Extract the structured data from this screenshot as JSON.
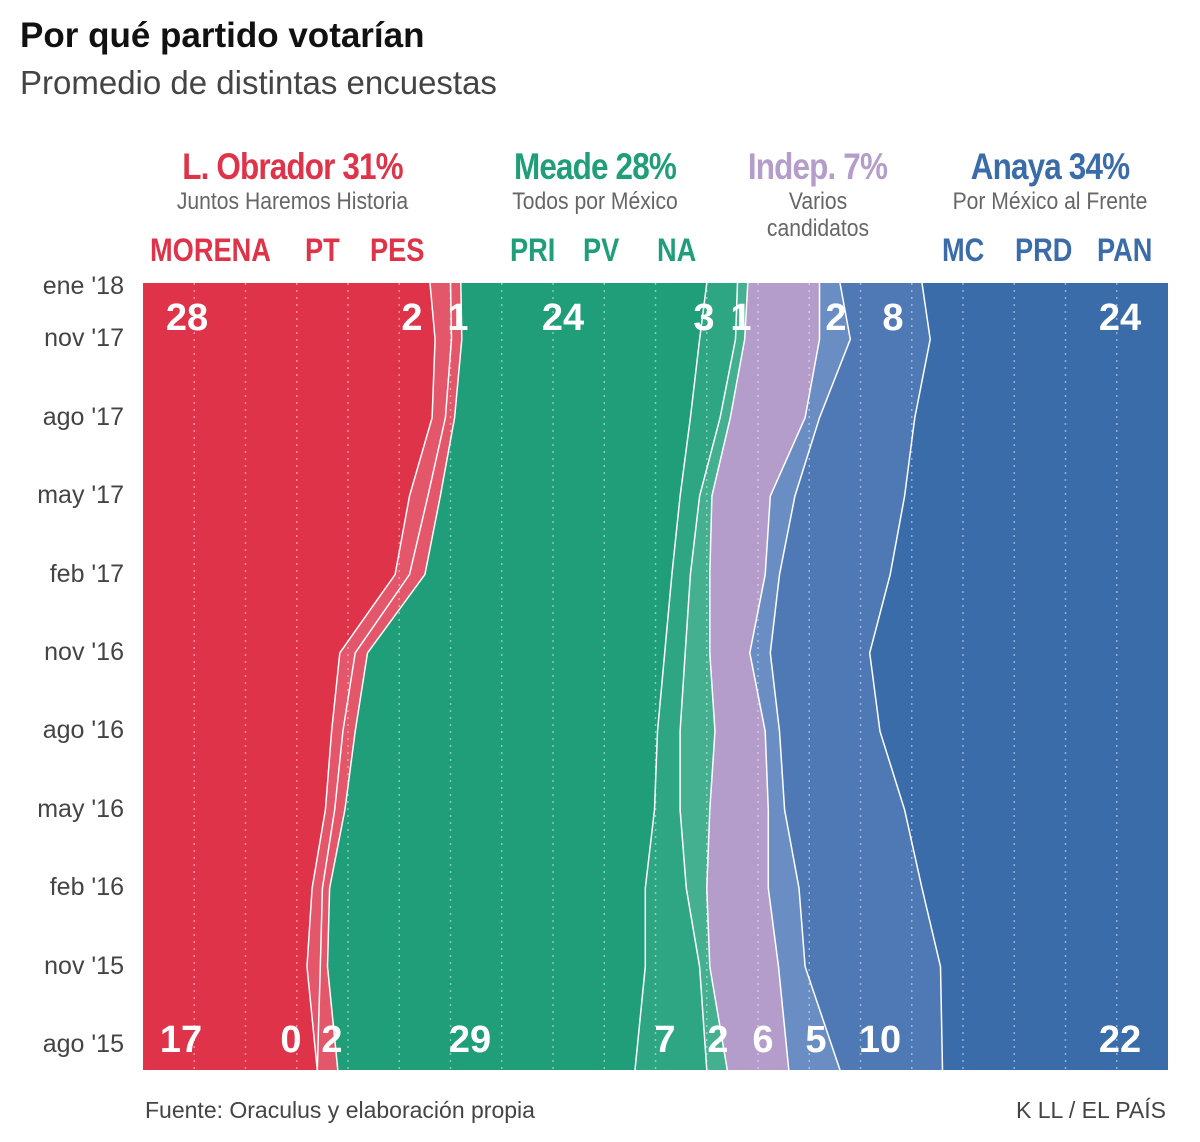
{
  "header": {
    "title": "Por qué partido votarían",
    "subtitle": "Promedio de distintas encuestas"
  },
  "groups": [
    {
      "candidate": "L. Obrador 31%",
      "coalition": "Juntos Haremos Historia",
      "color": "#de3349"
    },
    {
      "candidate": "Meade 28%",
      "coalition": "Todos por México",
      "color": "#1f9e79"
    },
    {
      "candidate": "Indep. 7%",
      "coalition": "Varios candidatos",
      "color": "#b49ccb"
    },
    {
      "candidate": "Anaya 34%",
      "coalition": "Por México al Frente",
      "color": "#3a6caa"
    }
  ],
  "footer": {
    "source": "Fuente: Oraculus y elaboración propia",
    "credit": "K LL / EL PAÍS"
  },
  "chart_data": {
    "type": "area",
    "orientation": "vertical-time-axis, stacked to 100%",
    "title": "Por qué partido votarían",
    "subtitle": "Promedio de distintas encuestas",
    "xlim": [
      0,
      100
    ],
    "grid": true,
    "time": [
      "ago '15",
      "nov '15",
      "feb '16",
      "may '16",
      "ago '16",
      "nov '16",
      "feb '17",
      "may '17",
      "ago '17",
      "nov '17",
      "ene '18"
    ],
    "time_labels_top_to_bottom": [
      "ene '18",
      "nov '17",
      "ago '17",
      "may '17",
      "feb '17",
      "nov '16",
      "ago '16",
      "may '16",
      "feb '16",
      "nov '15",
      "ago '15"
    ],
    "series": [
      {
        "name": "MORENA",
        "color": "#de3349",
        "values": [
          17,
          16,
          16.5,
          17.8,
          18.4,
          19.2,
          24.6,
          26,
          28.2,
          28.5,
          28
        ],
        "start_label": "17",
        "end_label": "28"
      },
      {
        "name": "PT",
        "color": "#e4566a",
        "values": [
          0,
          1.3,
          1,
          0.9,
          1.1,
          1.5,
          1.4,
          1.8,
          1.3,
          1.6,
          2
        ],
        "start_label": "0",
        "end_label": "2"
      },
      {
        "name": "PES",
        "color": "#e4566a",
        "values": [
          2,
          0.7,
          0.7,
          1,
          1.2,
          1.2,
          1.5,
          1.2,
          0.9,
          1,
          1
        ],
        "start_label": "2",
        "end_label": "1"
      },
      {
        "name": "PRI",
        "color": "#1f9e79",
        "values": [
          29,
          31,
          30.8,
          30.2,
          29.5,
          29,
          24.1,
          23.4,
          23,
          23.2,
          24
        ],
        "start_label": "29",
        "end_label": "24"
      },
      {
        "name": "PV",
        "color": "#2fa683",
        "values": [
          7,
          5.3,
          4,
          2.5,
          2.2,
          2,
          1.8,
          1.9,
          2.9,
          3.5,
          3
        ],
        "start_label": "7",
        "end_label": "3"
      },
      {
        "name": "NA",
        "color": "#45b08f",
        "values": [
          2,
          1,
          2,
          2.9,
          3.4,
          2.4,
          1.9,
          1.2,
          1,
          0.9,
          1
        ],
        "start_label": "2",
        "end_label": "1"
      },
      {
        "name": "Indep.",
        "color": "#b49ccb",
        "values": [
          6,
          6.7,
          6,
          5.7,
          4.9,
          3.9,
          5.4,
          5.7,
          7.3,
          7.3,
          7
        ],
        "start_label": "6",
        "end_label": ""
      },
      {
        "name": "MC",
        "color": "#6a8ec4",
        "values": [
          5,
          2.6,
          3,
          1.6,
          1.4,
          2,
          1.4,
          2.4,
          1.4,
          3,
          2
        ],
        "start_label": "5",
        "end_label": "2"
      },
      {
        "name": "PRD",
        "color": "#4f79b5",
        "values": [
          10,
          13.2,
          12,
          11.7,
          9.8,
          9.7,
          10.8,
          10.7,
          9.3,
          7.8,
          8
        ],
        "start_label": "10",
        "end_label": "8"
      },
      {
        "name": "PAN",
        "color": "#3a6caa",
        "values": [
          22,
          22.2,
          24,
          25.7,
          28.1,
          29.1,
          27.1,
          25.7,
          24.7,
          23.2,
          24
        ],
        "start_label": "22",
        "end_label": "24"
      }
    ]
  }
}
